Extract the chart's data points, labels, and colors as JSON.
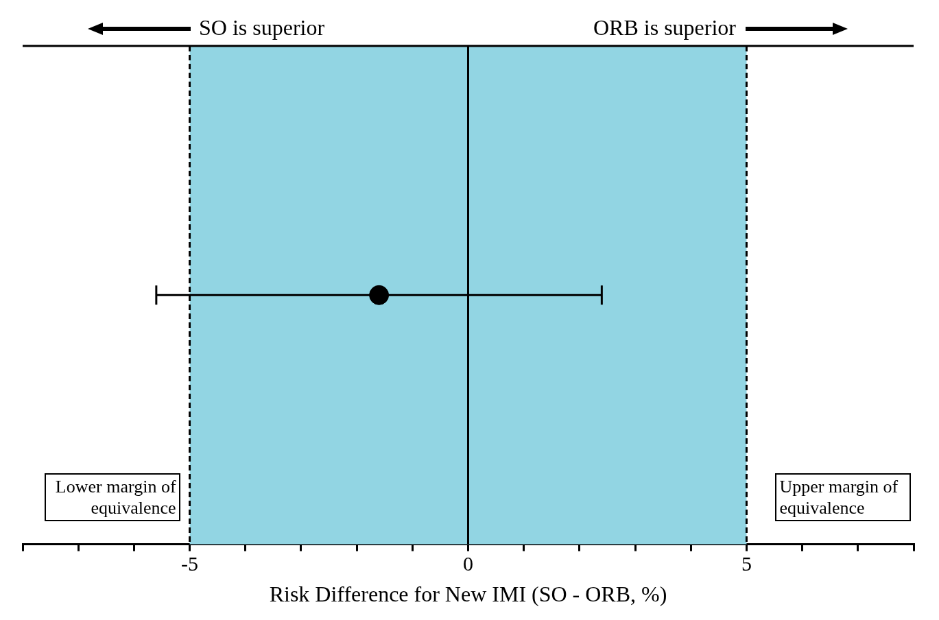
{
  "chart_data": {
    "type": "scatter",
    "orientation": "horizontal",
    "categories": [
      null
    ],
    "values": [
      -1.6
    ],
    "errors": [
      [
        -5.6,
        2.4
      ]
    ],
    "color": "#000000",
    "marker": "circle",
    "xlabel": "Risk Difference for New IMI (SO - ORB, %)",
    "xlim": [
      -8,
      8
    ],
    "xticks": [
      {
        "value": -8,
        "label": null
      },
      {
        "value": -7,
        "label": null
      },
      {
        "value": -6,
        "label": null
      },
      {
        "value": -5,
        "label": "-5"
      },
      {
        "value": -4,
        "label": null
      },
      {
        "value": -3,
        "label": null
      },
      {
        "value": -2,
        "label": null
      },
      {
        "value": -1,
        "label": null
      },
      0,
      {
        "value": 1,
        "label": null
      },
      {
        "value": 2,
        "label": null
      },
      {
        "value": 3,
        "label": null
      },
      {
        "value": 4,
        "label": null
      },
      5,
      {
        "value": 6,
        "label": null
      },
      {
        "value": 7,
        "label": null
      },
      {
        "value": 8,
        "label": null
      }
    ],
    "tick_labels": "x",
    "grid": false,
    "legend": false,
    "bands": [
      {
        "axis": "x",
        "from": -5,
        "to": 5,
        "color": "#92d5e3"
      }
    ],
    "ref_lines": [
      {
        "axis": "x",
        "value": -5,
        "label": "Lower margin of equivalence",
        "line_style": "dashed"
      },
      {
        "axis": "x",
        "value": 0,
        "line_style": "solid"
      },
      {
        "axis": "x",
        "value": 5,
        "label": "Upper margin of equivalence",
        "line_style": "dashed"
      }
    ],
    "annotations": [
      "SO is superior",
      "ORB is superior"
    ]
  }
}
